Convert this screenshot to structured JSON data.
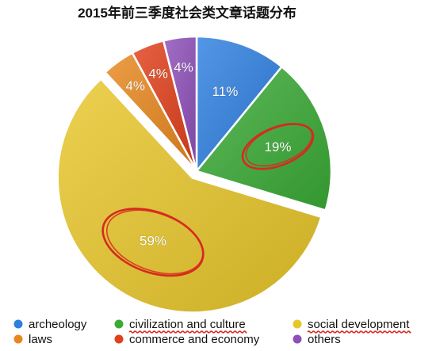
{
  "chart_data": {
    "type": "pie",
    "title": "2015年前三季度社会类文章话题分布",
    "slices": [
      {
        "label": "archeology",
        "value": 11,
        "display": "11%",
        "color": "#2f7fe0"
      },
      {
        "label": "civilization and culture",
        "value": 19,
        "display": "19%",
        "color": "#3aaa35"
      },
      {
        "label": "social development",
        "value": 59,
        "display": "59%",
        "color": "#e8c62a",
        "exploded": true
      },
      {
        "label": "laws",
        "value": 4,
        "display": "4%",
        "color": "#e8871e"
      },
      {
        "label": "commerce and economy",
        "value": 4,
        "display": "4%",
        "color": "#e0401a"
      },
      {
        "label": "others",
        "value": 4,
        "display": "4%",
        "color": "#8e4fb8"
      }
    ],
    "legend_placement": "bottom",
    "legend_order": [
      "archeology",
      "civilization and culture",
      "social development",
      "laws",
      "commerce and economy",
      "others"
    ],
    "annotations": {
      "circled_slices": [
        "civilization and culture",
        "social development"
      ],
      "underlined_legend_entries": [
        "civilization and culture",
        "social development"
      ],
      "annotation_color": "#d62a1e"
    }
  }
}
